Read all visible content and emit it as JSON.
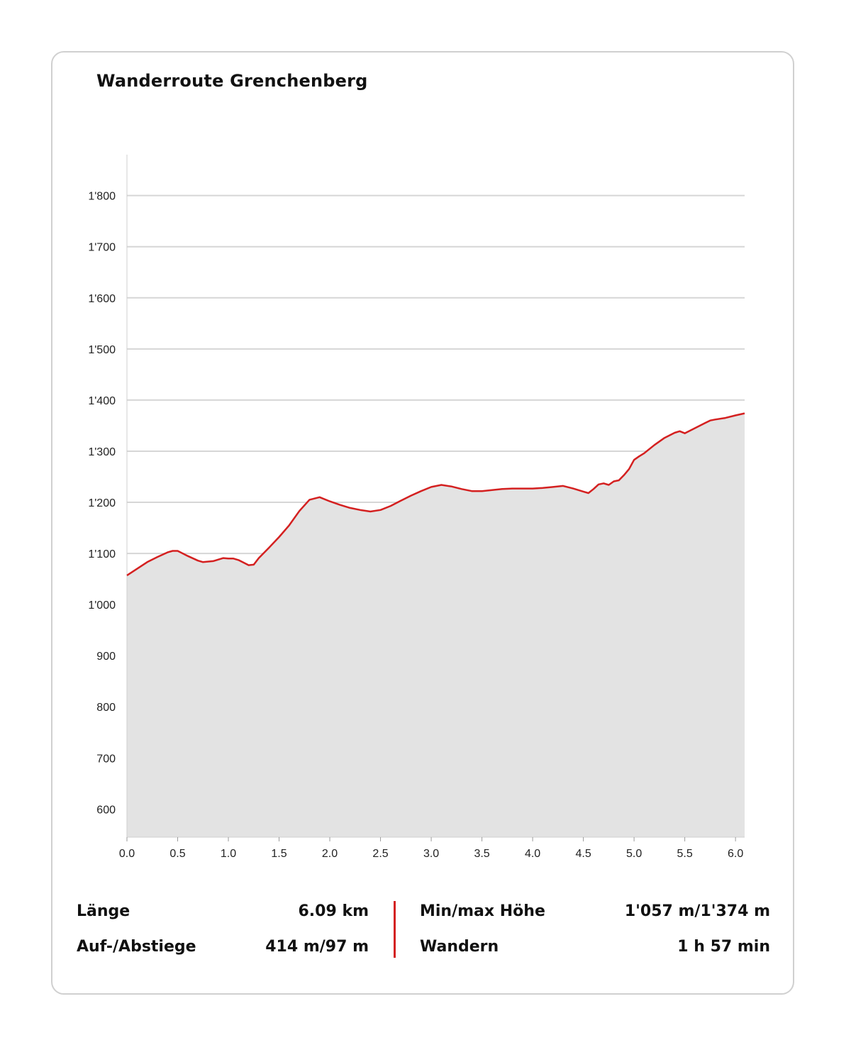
{
  "title": "Wanderroute Grenchenberg",
  "colors": {
    "line": "#d42020",
    "fill": "#e3e3e3",
    "grid": "#d6d6d6",
    "card_border": "#d0d0d0"
  },
  "chart_data": {
    "type": "area",
    "title": "Wanderroute Grenchenberg",
    "xlabel": "",
    "ylabel": "",
    "xlim": [
      0,
      6.09
    ],
    "ylim": [
      545,
      1880
    ],
    "grid": true,
    "x_ticks": [
      0.0,
      0.5,
      1.0,
      1.5,
      2.0,
      2.5,
      3.0,
      3.5,
      4.0,
      4.5,
      5.0,
      5.5,
      6.0
    ],
    "x_tick_labels": [
      "0.0",
      "0.5",
      "1.0",
      "1.5",
      "2.0",
      "2.5",
      "3.0",
      "3.5",
      "4.0",
      "4.5",
      "5.0",
      "5.5",
      "6.0"
    ],
    "y_ticks": [
      600,
      700,
      800,
      900,
      1000,
      1100,
      1200,
      1300,
      1400,
      1500,
      1600,
      1700,
      1800
    ],
    "y_tick_labels": [
      "600",
      "700",
      "800",
      "900",
      "1'000",
      "1'100",
      "1'200",
      "1'300",
      "1'400",
      "1'500",
      "1'600",
      "1'700",
      "1'800"
    ],
    "series": [
      {
        "x": [
          0.0,
          0.1,
          0.2,
          0.3,
          0.4,
          0.45,
          0.5,
          0.6,
          0.7,
          0.75,
          0.85,
          0.95,
          1.0,
          1.05,
          1.1,
          1.15,
          1.2,
          1.25,
          1.3,
          1.4,
          1.5,
          1.6,
          1.7,
          1.8,
          1.9,
          2.0,
          2.1,
          2.2,
          2.3,
          2.4,
          2.5,
          2.6,
          2.7,
          2.8,
          2.9,
          3.0,
          3.1,
          3.2,
          3.3,
          3.4,
          3.5,
          3.6,
          3.7,
          3.8,
          3.9,
          4.0,
          4.1,
          4.2,
          4.3,
          4.4,
          4.5,
          4.55,
          4.6,
          4.65,
          4.7,
          4.75,
          4.8,
          4.85,
          4.9,
          4.95,
          5.0,
          5.05,
          5.1,
          5.2,
          5.3,
          5.4,
          5.45,
          5.5,
          5.6,
          5.7,
          5.75,
          5.8,
          5.9,
          6.0,
          6.09
        ],
        "y": [
          1057,
          1070,
          1083,
          1093,
          1102,
          1105,
          1105,
          1095,
          1086,
          1083,
          1085,
          1091,
          1090,
          1090,
          1087,
          1082,
          1077,
          1078,
          1091,
          1111,
          1132,
          1155,
          1183,
          1205,
          1210,
          1202,
          1195,
          1189,
          1185,
          1182,
          1185,
          1193,
          1203,
          1213,
          1222,
          1230,
          1234,
          1231,
          1226,
          1222,
          1222,
          1224,
          1226,
          1227,
          1227,
          1227,
          1228,
          1230,
          1232,
          1227,
          1221,
          1218,
          1226,
          1235,
          1237,
          1234,
          1241,
          1243,
          1253,
          1265,
          1283,
          1290,
          1296,
          1312,
          1326,
          1336,
          1339,
          1335,
          1345,
          1355,
          1360,
          1362,
          1365,
          1370,
          1374
        ]
      }
    ]
  },
  "stats": {
    "length_label": "Länge",
    "length_value": "6.09 km",
    "updown_label": "Auf-/Abstiege",
    "updown_value": "414 m/97 m",
    "minmax_label": "Min/max Höhe",
    "minmax_value": "1'057 m/1'374 m",
    "hike_label": "Wandern",
    "hike_value": "1 h 57 min"
  }
}
